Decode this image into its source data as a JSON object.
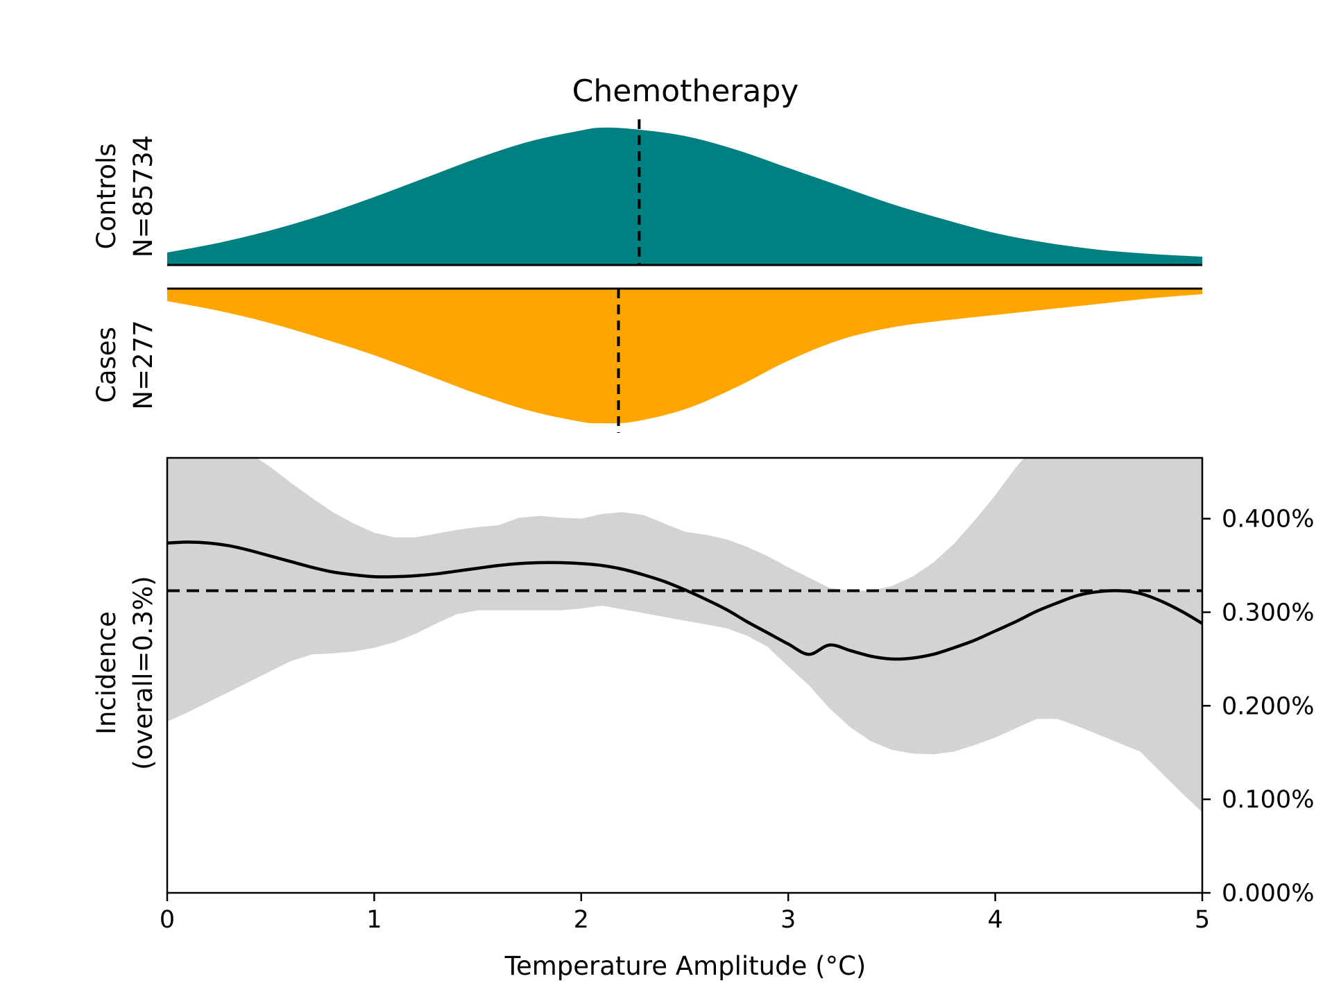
{
  "colors": {
    "controls": "#008080",
    "cases": "#FFA500",
    "ci_band": "#d3d3d3",
    "line": "#000000"
  },
  "chart_data": {
    "type": "area",
    "title": "Chemotherapy",
    "xlabel": "Temperature Amplitude (°C)",
    "xlim": [
      0,
      5
    ],
    "x_ticks": [
      0,
      1,
      2,
      3,
      4,
      5
    ],
    "controls": {
      "label_line1": "Controls",
      "label_line2": "N=85734",
      "color": "#008080",
      "median": 2.28,
      "density": {
        "x": [
          0,
          0.25,
          0.5,
          0.75,
          1.0,
          1.25,
          1.5,
          1.75,
          2.0,
          2.1,
          2.25,
          2.5,
          2.75,
          3.0,
          3.25,
          3.5,
          3.75,
          4.0,
          4.25,
          4.5,
          4.75,
          5.0
        ],
        "y": [
          0.09,
          0.16,
          0.25,
          0.36,
          0.49,
          0.63,
          0.77,
          0.89,
          0.97,
          0.99,
          0.98,
          0.93,
          0.83,
          0.7,
          0.57,
          0.44,
          0.33,
          0.23,
          0.16,
          0.11,
          0.08,
          0.06
        ]
      }
    },
    "cases": {
      "label_line1": "Cases",
      "label_line2": "N=277",
      "color": "#FFA500",
      "median": 2.18,
      "density": {
        "x": [
          0,
          0.25,
          0.5,
          0.75,
          1.0,
          1.25,
          1.5,
          1.75,
          2.0,
          2.1,
          2.25,
          2.5,
          2.75,
          3.0,
          3.25,
          3.5,
          3.75,
          4.0,
          4.25,
          4.5,
          4.75,
          5.0
        ],
        "y": [
          0.09,
          0.16,
          0.25,
          0.36,
          0.48,
          0.62,
          0.76,
          0.88,
          0.96,
          0.97,
          0.96,
          0.87,
          0.71,
          0.52,
          0.37,
          0.28,
          0.23,
          0.19,
          0.15,
          0.11,
          0.07,
          0.04
        ]
      }
    },
    "incidence": {
      "ylabel_line1": "Incidence",
      "ylabel_line2": "(overall=0.3%)",
      "ylim": [
        0,
        0.00465
      ],
      "y_ticks": [
        0,
        0.001,
        0.002,
        0.003,
        0.004
      ],
      "y_tick_labels": [
        "0.000%",
        "0.100%",
        "0.200%",
        "0.300%",
        "0.400%"
      ],
      "overall": 0.00323,
      "x": [
        0,
        0.1,
        0.2,
        0.3,
        0.4,
        0.5,
        0.6,
        0.7,
        0.8,
        0.9,
        1.0,
        1.1,
        1.2,
        1.3,
        1.4,
        1.5,
        1.6,
        1.7,
        1.8,
        1.9,
        2.0,
        2.1,
        2.2,
        2.3,
        2.4,
        2.5,
        2.6,
        2.7,
        2.8,
        2.9,
        3.0,
        3.1,
        3.2,
        3.3,
        3.4,
        3.5,
        3.6,
        3.7,
        3.8,
        3.9,
        4.0,
        4.1,
        4.2,
        4.3,
        4.4,
        4.5,
        4.6,
        4.7,
        4.8,
        4.9,
        5.0
      ],
      "mean": [
        0.00374,
        0.00375,
        0.00374,
        0.00371,
        0.00366,
        0.0036,
        0.00354,
        0.00348,
        0.00343,
        0.0034,
        0.00338,
        0.00338,
        0.00339,
        0.00341,
        0.00344,
        0.00347,
        0.0035,
        0.00352,
        0.00353,
        0.00353,
        0.00352,
        0.0035,
        0.00346,
        0.0034,
        0.00333,
        0.00324,
        0.00314,
        0.00303,
        0.0029,
        0.00278,
        0.00266,
        0.00255,
        0.00265,
        0.00259,
        0.00253,
        0.0025,
        0.00251,
        0.00255,
        0.00262,
        0.0027,
        0.0028,
        0.0029,
        0.00301,
        0.0031,
        0.00318,
        0.00322,
        0.00323,
        0.0032,
        0.00312,
        0.00301,
        0.00288
      ],
      "upper": [
        0.0048,
        0.0048,
        0.0048,
        0.0048,
        0.0047,
        0.00455,
        0.00438,
        0.00422,
        0.00407,
        0.00395,
        0.00385,
        0.0038,
        0.0038,
        0.00384,
        0.00388,
        0.00391,
        0.00393,
        0.00401,
        0.00403,
        0.00401,
        0.004,
        0.00405,
        0.00407,
        0.00404,
        0.00395,
        0.00386,
        0.00383,
        0.00378,
        0.0037,
        0.0036,
        0.00348,
        0.00337,
        0.00326,
        0.00323,
        0.00323,
        0.00328,
        0.00338,
        0.00353,
        0.00373,
        0.00398,
        0.00425,
        0.00455,
        0.0048,
        0.0048,
        0.0048,
        0.0048,
        0.0048,
        0.0048,
        0.0048,
        0.0048,
        0.0048
      ],
      "lower": [
        0.00183,
        0.00193,
        0.00204,
        0.00215,
        0.00226,
        0.00237,
        0.00248,
        0.00255,
        0.00256,
        0.00258,
        0.00262,
        0.00268,
        0.00277,
        0.00288,
        0.00298,
        0.00302,
        0.00302,
        0.00302,
        0.00302,
        0.00302,
        0.00304,
        0.00307,
        0.00303,
        0.00299,
        0.00295,
        0.00291,
        0.00287,
        0.00283,
        0.00275,
        0.00263,
        0.00242,
        0.00222,
        0.00197,
        0.00177,
        0.00162,
        0.00153,
        0.00149,
        0.00148,
        0.00151,
        0.00158,
        0.00166,
        0.00176,
        0.00186,
        0.00186,
        0.00178,
        0.00169,
        0.0016,
        0.00151,
        0.00129,
        0.00107,
        0.00086
      ]
    }
  }
}
